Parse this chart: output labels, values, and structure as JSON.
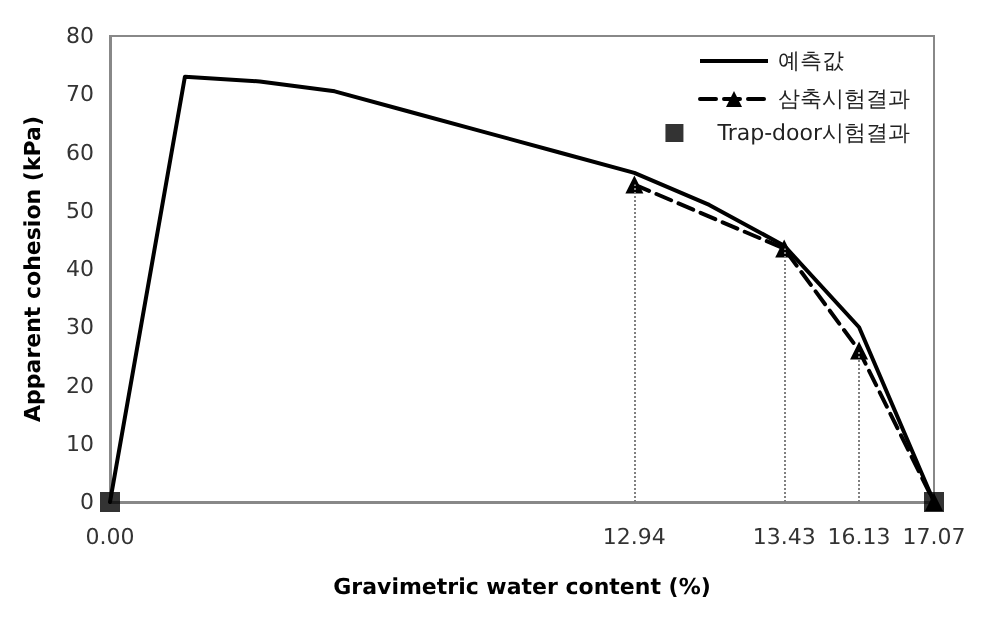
{
  "chart_data": {
    "type": "line",
    "xlabel": "Gravimetric water content (%)",
    "ylabel": "Apparent cohesion (kPa)",
    "categories": [
      "0.00",
      null,
      null,
      null,
      null,
      null,
      null,
      "12.94",
      null,
      "13.43",
      "16.13",
      "17.07"
    ],
    "series": [
      {
        "name": "예측값",
        "color": "#000000",
        "line_style": "solid",
        "marker": "none",
        "values": [
          0,
          73,
          72.2,
          70.5,
          67,
          63.5,
          60,
          56.5,
          51,
          44,
          30,
          0
        ]
      },
      {
        "name": "삼축시험결과",
        "color": "#000000",
        "line_style": "dashed",
        "marker": "triangle",
        "values": [
          null,
          null,
          null,
          null,
          null,
          null,
          null,
          54.5,
          null,
          43.5,
          26,
          0
        ]
      },
      {
        "name": "Trap-door시험결과",
        "type": "scatter",
        "color": "#000000",
        "marker": "square",
        "values": [
          0,
          null,
          null,
          null,
          null,
          null,
          null,
          null,
          null,
          null,
          null,
          0
        ]
      }
    ],
    "ref_lines": [
      {
        "axis": "x",
        "value": "12.94",
        "line_style": "dotted",
        "color": "#808080"
      },
      {
        "axis": "x",
        "value": "13.43",
        "line_style": "dotted",
        "color": "#808080"
      },
      {
        "axis": "x",
        "value": "16.13",
        "line_style": "dotted",
        "color": "#808080"
      }
    ],
    "ylim": [
      0,
      80
    ],
    "yticks": [
      0,
      10,
      20,
      30,
      40,
      50,
      60,
      70,
      80
    ],
    "grid": false,
    "legend": "top right"
  }
}
